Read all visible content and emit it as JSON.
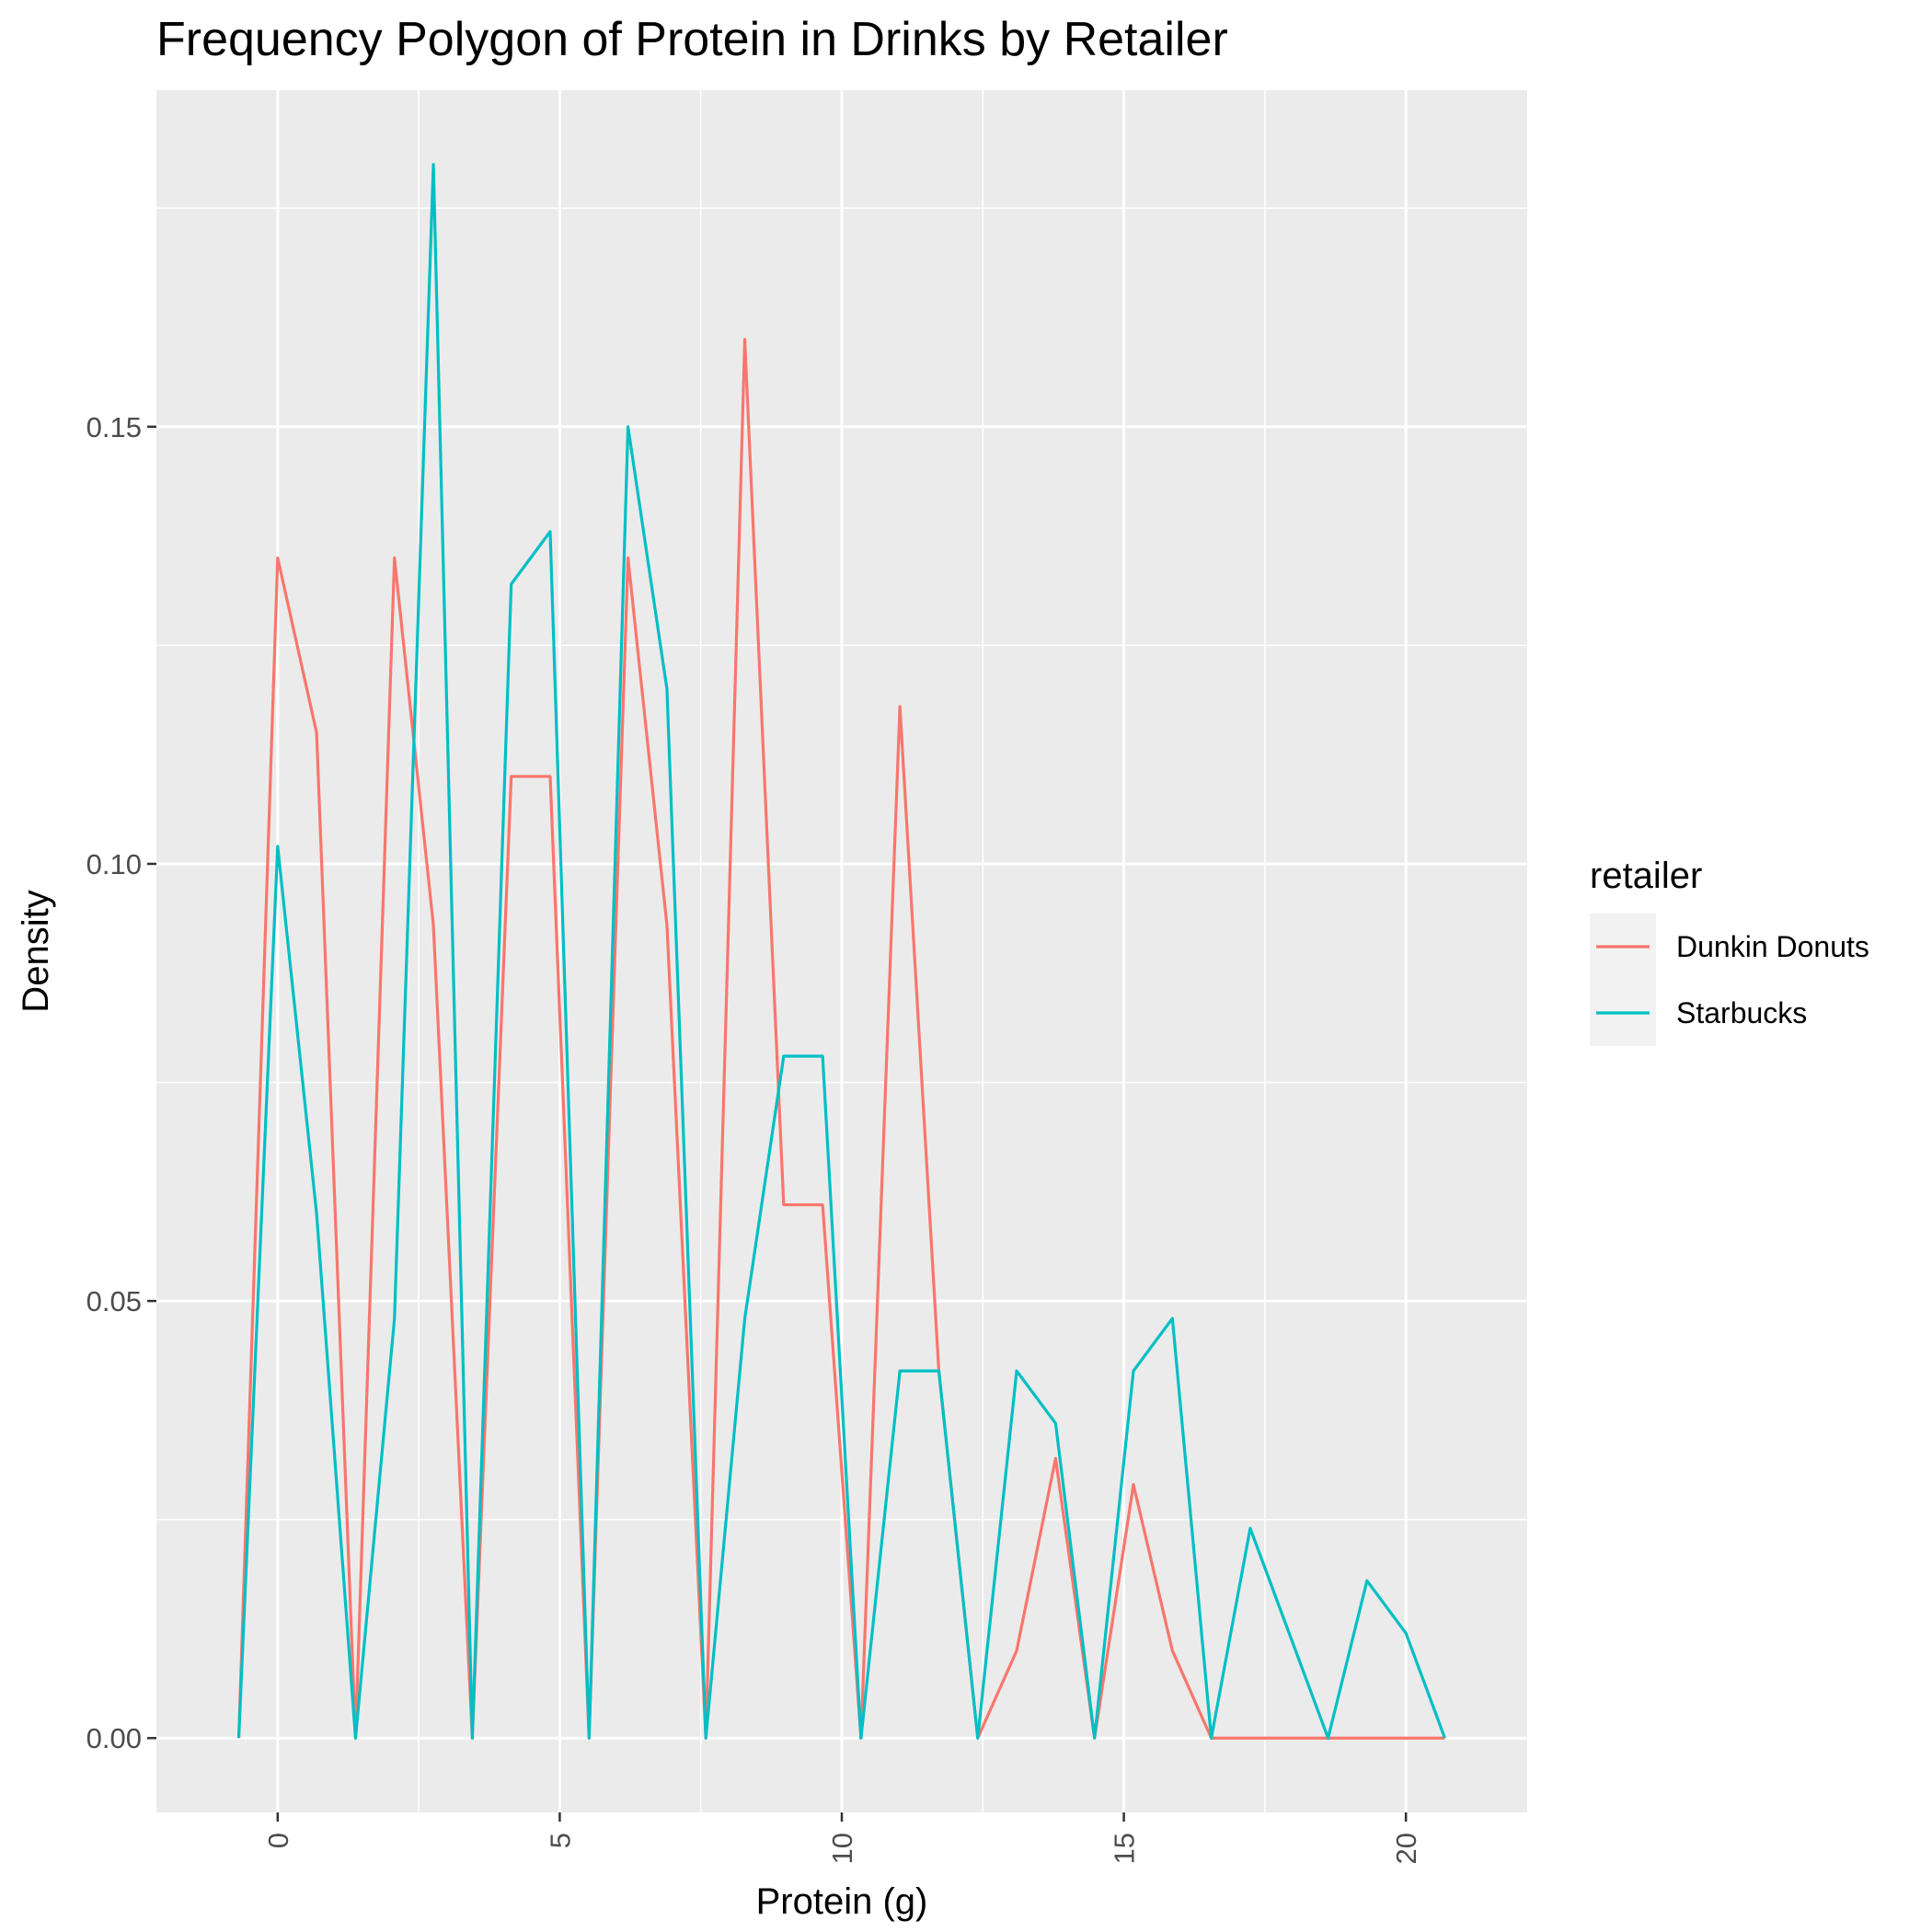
{
  "chart_data": {
    "type": "line",
    "title": "Frequency Polygon of Protein in Drinks by Retailer",
    "xlabel": "Protein (g)",
    "ylabel": "Density",
    "xlim": [
      -2.15,
      22.15
    ],
    "ylim": [
      -0.0085,
      0.1885
    ],
    "x_ticks": [
      0,
      5,
      10,
      15,
      20
    ],
    "x_tick_labels": [
      "0",
      "5",
      "10",
      "15",
      "20"
    ],
    "y_ticks": [
      0,
      0.05,
      0.1,
      0.15
    ],
    "y_tick_labels": [
      "0.00",
      "0.05",
      "0.10",
      "0.15"
    ],
    "grid": true,
    "legend": {
      "title": "retailer",
      "position": "right"
    },
    "series": [
      {
        "name": "Dunkin Donuts",
        "color": "#F8766D",
        "points": [
          [
            -0.69,
            0
          ],
          [
            0,
            0.135
          ],
          [
            0.69,
            0.115
          ],
          [
            1.38,
            0
          ],
          [
            2.07,
            0.135
          ],
          [
            2.76,
            0.093
          ],
          [
            3.45,
            0
          ],
          [
            4.14,
            0.11
          ],
          [
            4.83,
            0.11
          ],
          [
            5.52,
            0
          ],
          [
            6.21,
            0.135
          ],
          [
            6.9,
            0.093
          ],
          [
            7.59,
            0
          ],
          [
            8.28,
            0.16
          ],
          [
            8.97,
            0.061
          ],
          [
            9.66,
            0.061
          ],
          [
            10.34,
            0
          ],
          [
            11.03,
            0.118
          ],
          [
            11.72,
            0.042
          ],
          [
            12.41,
            0
          ],
          [
            13.1,
            0.01
          ],
          [
            13.79,
            0.032
          ],
          [
            14.48,
            0
          ],
          [
            15.17,
            0.029
          ],
          [
            15.86,
            0.01
          ],
          [
            16.55,
            0
          ],
          [
            17.24,
            0
          ],
          [
            17.93,
            0
          ],
          [
            18.62,
            0
          ],
          [
            19.31,
            0
          ],
          [
            20.0,
            0
          ],
          [
            20.69,
            0
          ]
        ]
      },
      {
        "name": "Starbucks",
        "color": "#00BFC4",
        "points": [
          [
            -0.69,
            0
          ],
          [
            0,
            0.102
          ],
          [
            0.69,
            0.06
          ],
          [
            1.38,
            0
          ],
          [
            2.07,
            0.048
          ],
          [
            2.76,
            0.18
          ],
          [
            3.45,
            0
          ],
          [
            4.14,
            0.132
          ],
          [
            4.83,
            0.138
          ],
          [
            5.52,
            0
          ],
          [
            6.21,
            0.15
          ],
          [
            6.9,
            0.12
          ],
          [
            7.59,
            0
          ],
          [
            8.28,
            0.048
          ],
          [
            8.97,
            0.078
          ],
          [
            9.66,
            0.078
          ],
          [
            10.34,
            0
          ],
          [
            11.03,
            0.042
          ],
          [
            11.72,
            0.042
          ],
          [
            12.41,
            0
          ],
          [
            13.1,
            0.042
          ],
          [
            13.79,
            0.036
          ],
          [
            14.48,
            0
          ],
          [
            15.17,
            0.042
          ],
          [
            15.86,
            0.048
          ],
          [
            16.55,
            0
          ],
          [
            17.24,
            0.024
          ],
          [
            17.93,
            0.012
          ],
          [
            18.62,
            0
          ],
          [
            19.31,
            0.018
          ],
          [
            20.0,
            0.012
          ],
          [
            20.69,
            0
          ]
        ]
      }
    ]
  }
}
